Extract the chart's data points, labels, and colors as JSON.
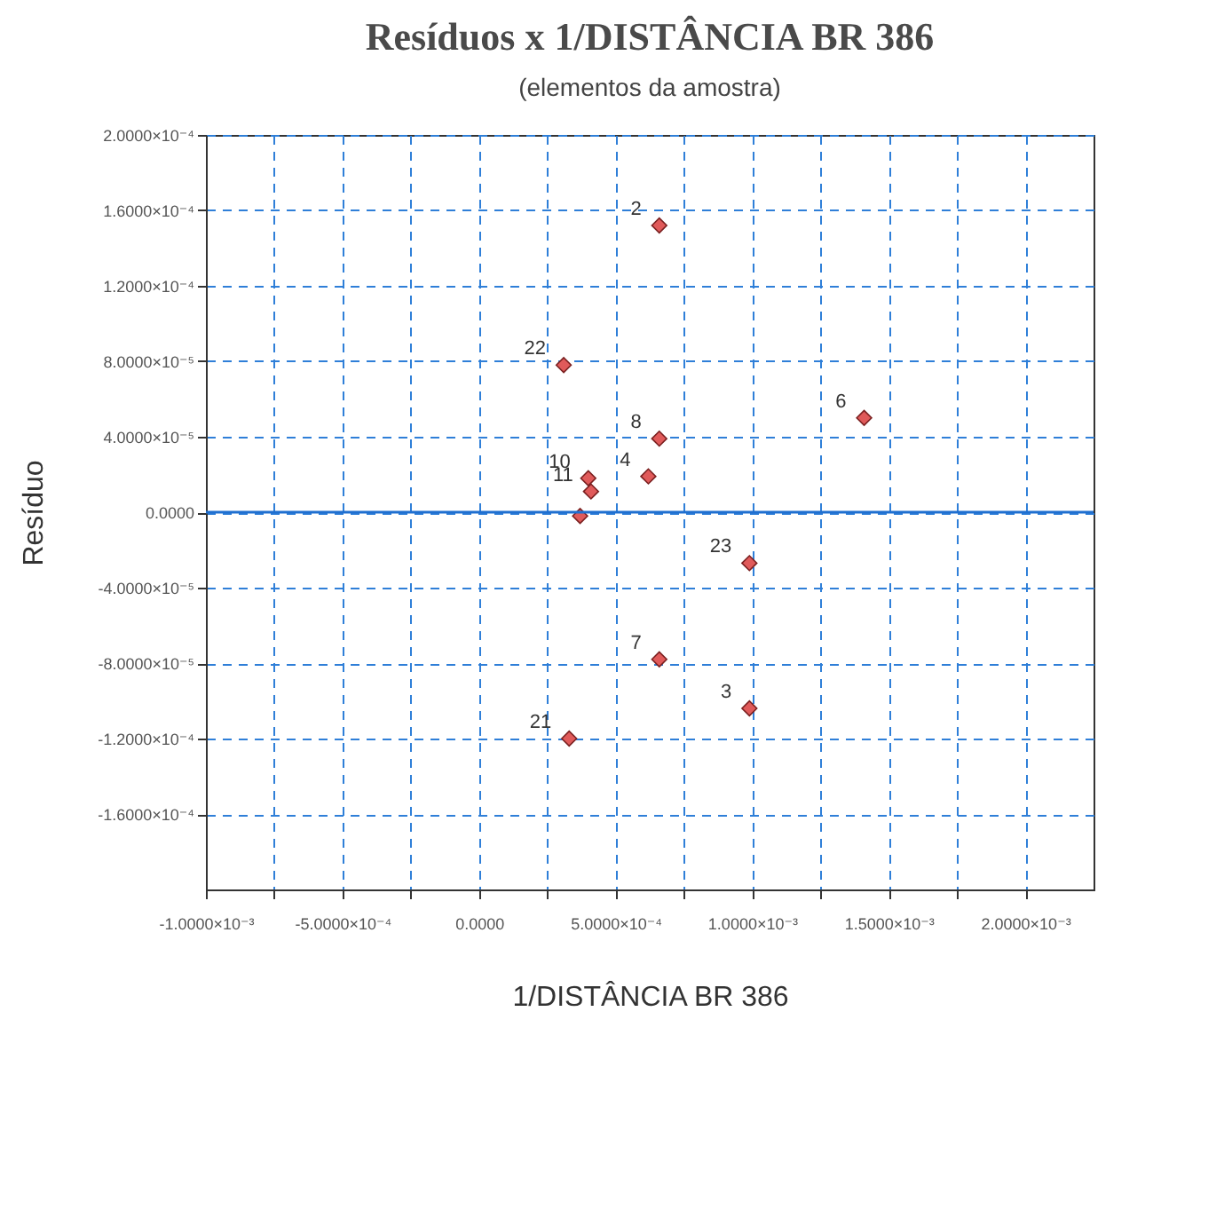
{
  "chart_data": {
    "type": "scatter",
    "title": "Resíduos x 1/DISTÂNCIA BR 386",
    "subtitle": "(elementos da amostra)",
    "xlabel": "1/DISTÂNCIA BR 386",
    "ylabel": "Resíduo",
    "x": [
      0.00066,
      0.00031,
      0.00141,
      0.00066,
      0.00062,
      0.0004,
      0.00041,
      0.00037,
      0.00099,
      0.00066,
      0.00099,
      0.00033
    ],
    "series": [
      {
        "color": "#e05a5a",
        "values": [
          0.000152,
          7.8e-05,
          5e-05,
          3.9e-05,
          1.9e-05,
          1.8e-05,
          1.1e-05,
          -2e-06,
          -2.7e-05,
          -7.8e-05,
          -0.000104,
          -0.00012
        ]
      }
    ],
    "marker": "diamond",
    "grid": true,
    "xlim": [
      -0.001,
      0.00225
    ],
    "ylim": [
      -0.0002,
      0.0002
    ],
    "xticks": [
      {
        "value": -0.001,
        "label": "-1.0000×10⁻³"
      },
      {
        "value": -0.00075,
        "label": null
      },
      {
        "value": -0.0005,
        "label": "-5.0000×10⁻⁴"
      },
      {
        "value": -0.00025,
        "label": null
      },
      {
        "value": 0,
        "label": "0.0000"
      },
      {
        "value": 0.00025,
        "label": null
      },
      {
        "value": 0.0005,
        "label": "5.0000×10⁻⁴"
      },
      {
        "value": 0.00075,
        "label": null
      },
      {
        "value": 0.001,
        "label": "1.0000×10⁻³"
      },
      {
        "value": 0.00125,
        "label": null
      },
      {
        "value": 0.0015,
        "label": "1.5000×10⁻³"
      },
      {
        "value": 0.00175,
        "label": null
      },
      {
        "value": 0.002,
        "label": "2.0000×10⁻³"
      }
    ],
    "yticks": [
      {
        "value": 0.0002,
        "label": "2.0000×10⁻⁴"
      },
      {
        "value": 0.00016,
        "label": "1.6000×10⁻⁴"
      },
      {
        "value": 0.00012,
        "label": "1.2000×10⁻⁴"
      },
      {
        "value": 8e-05,
        "label": "8.0000×10⁻⁵"
      },
      {
        "value": 4e-05,
        "label": "4.0000×10⁻⁵"
      },
      {
        "value": 0,
        "label": "0.0000"
      },
      {
        "value": -4e-05,
        "label": "-4.0000×10⁻⁵"
      },
      {
        "value": -8e-05,
        "label": "-8.0000×10⁻⁵"
      },
      {
        "value": -0.00012,
        "label": "-1.2000×10⁻⁴"
      },
      {
        "value": -0.00016,
        "label": "-1.6000×10⁻⁴"
      }
    ],
    "ref_lines": [
      {
        "axis": "y",
        "value": 0,
        "color": "#1f6fd0",
        "line_style": "solid"
      }
    ],
    "annotations": [
      {
        "text": "2",
        "x": 0.00066,
        "y": 0.000152
      },
      {
        "text": "22",
        "x": 0.00031,
        "y": 7.8e-05
      },
      {
        "text": "6",
        "x": 0.00141,
        "y": 5e-05
      },
      {
        "text": "8",
        "x": 0.00066,
        "y": 3.9e-05
      },
      {
        "text": "4",
        "x": 0.00062,
        "y": 1.9e-05
      },
      {
        "text": "10",
        "x": 0.0004,
        "y": 1.8e-05
      },
      {
        "text": "11",
        "x": 0.00041,
        "y": 1.1e-05
      },
      {
        "text": "23",
        "x": 0.00099,
        "y": -2.7e-05
      },
      {
        "text": "7",
        "x": 0.00066,
        "y": -7.8e-05
      },
      {
        "text": "3",
        "x": 0.00099,
        "y": -0.000104
      },
      {
        "text": "21",
        "x": 0.00033,
        "y": -0.00012
      }
    ]
  }
}
